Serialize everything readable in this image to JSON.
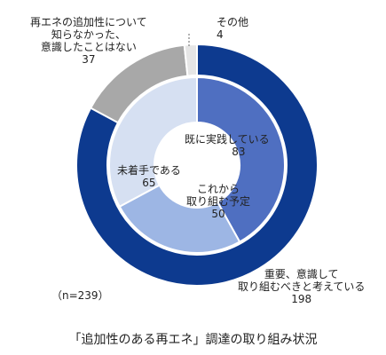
{
  "chart_data": [
    {
      "type": "pie",
      "ring": "outer",
      "series": [
        {
          "name": "重要、意識して取り組むべきと考えている",
          "value": 198
        },
        {
          "name": "再エネの追加性について知らなかった、意識したことはない",
          "value": 37
        },
        {
          "name": "その他",
          "value": 4
        }
      ],
      "colors": [
        "#0d3a8f",
        "#a8a8a8",
        "#e6e6e6"
      ]
    },
    {
      "type": "pie",
      "ring": "inner",
      "series": [
        {
          "name": "既に実践している",
          "value": 83
        },
        {
          "name": "これから取り組む予定",
          "value": 50
        },
        {
          "name": "未着手である",
          "value": 65
        }
      ],
      "colors": [
        "#4f6fc1",
        "#9db6e4",
        "#d6e0f2"
      ]
    }
  ],
  "labels": {
    "outer_198": {
      "line1": "重要、意識して",
      "line2": "取り組むべきと考えている",
      "value": "198"
    },
    "outer_37": {
      "line1": "再エネの追加性について",
      "line2": "知らなかった、",
      "line3": "意識したことはない",
      "value": "37"
    },
    "outer_4": {
      "line1": "その他",
      "value": "4"
    },
    "inner_83": {
      "line1": "既に実践している",
      "value": "83"
    },
    "inner_50": {
      "line1": "これから",
      "line2": "取り組む予定",
      "value": "50"
    },
    "inner_65": {
      "line1": "未着手である",
      "value": "65"
    }
  },
  "note": "（n=239）",
  "caption": "「追加性のある再エネ」調達の取り組み状況"
}
